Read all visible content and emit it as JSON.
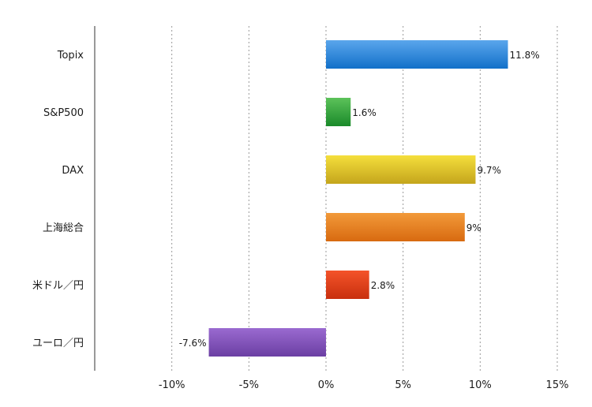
{
  "chart_data": {
    "type": "bar",
    "orientation": "horizontal",
    "categories": [
      "Topix",
      "S&P500",
      "DAX",
      "上海総合",
      "米ドル／円",
      "ユーロ／円"
    ],
    "values": [
      11.8,
      1.6,
      9.7,
      9,
      2.8,
      -7.6
    ],
    "data_labels": [
      "11.8%",
      "1.6%",
      "9.7%",
      "9%",
      "2.8%",
      "-7.6%"
    ],
    "xlim": [
      -15,
      15
    ],
    "xticks": [
      -10,
      -5,
      0,
      5,
      10,
      15
    ],
    "xtick_labels": [
      "-10%",
      "-5%",
      "0%",
      "5%",
      "10%",
      "15%"
    ],
    "title": "",
    "xlabel": "",
    "ylabel": "",
    "grid": "vertical-dotted",
    "legend": "none",
    "colors": [
      [
        "#5aa6ec",
        "#1270c9"
      ],
      [
        "#5cc25a",
        "#1a8a2a"
      ],
      [
        "#f5df3c",
        "#c4a51c"
      ],
      [
        "#f29a3a",
        "#d86a10"
      ],
      [
        "#f4542a",
        "#c8300e"
      ],
      [
        "#9a6ad0",
        "#6b3fa3"
      ]
    ]
  }
}
